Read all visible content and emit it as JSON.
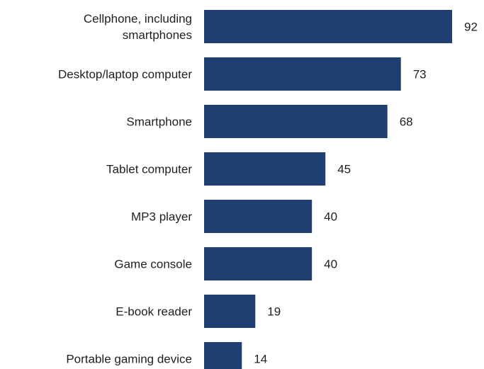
{
  "chart_data": {
    "type": "bar",
    "orientation": "horizontal",
    "categories": [
      [
        "Cellphone, including",
        "smartphones"
      ],
      [
        "Desktop/laptop computer"
      ],
      [
        "Smartphone"
      ],
      [
        "Tablet computer"
      ],
      [
        "MP3 player"
      ],
      [
        "Game console"
      ],
      [
        "E-book reader"
      ],
      [
        "Portable gaming device"
      ]
    ],
    "values": [
      92,
      73,
      68,
      45,
      40,
      40,
      19,
      14
    ],
    "value_labels": [
      "92",
      "73",
      "68",
      "45",
      "40",
      "40",
      "19",
      "14"
    ],
    "title": "",
    "xlabel": "",
    "ylabel": "",
    "xlim": [
      0,
      92
    ],
    "grid": false,
    "legend": "none",
    "bar_color": "#1f3f73"
  }
}
